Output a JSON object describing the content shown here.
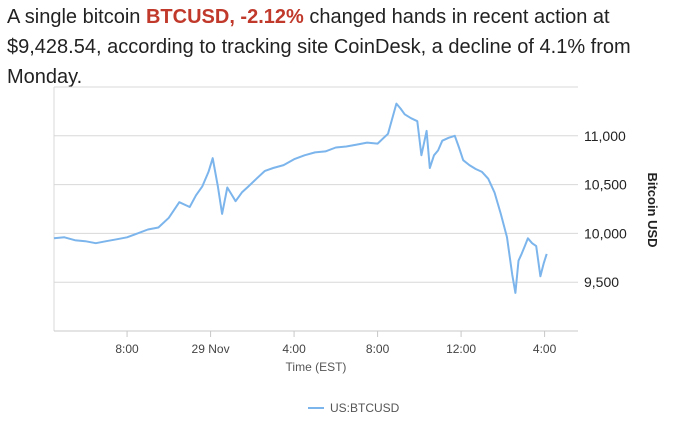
{
  "article": {
    "lead": "A single bitcoin ",
    "ticker": "BTCUSD, -2.12%",
    "tail": " changed hands in recent action at $9,428.54, according to tracking site CoinDesk, a decline of 4.1% from Monday."
  },
  "colors": {
    "series": "#7cb5ec",
    "ticker": "#c0392b",
    "grid": "#d8d8d8"
  },
  "chart_data": {
    "type": "line",
    "title": "",
    "xlabel": "Time (EST)",
    "ylabel": "Bitcoin USD",
    "x_unit": "hours since midnight Nov 28 (EST)",
    "xlim": [
      4.5,
      29.6
    ],
    "ylim": [
      9000,
      11500
    ],
    "xticks": [
      {
        "value": 8,
        "label": "8:00"
      },
      {
        "value": 12,
        "label": "29 Nov"
      },
      {
        "value": 16,
        "label": "4:00"
      },
      {
        "value": 20,
        "label": "8:00"
      },
      {
        "value": 24,
        "label": "12:00"
      },
      {
        "value": 28,
        "label": "4:00"
      }
    ],
    "yticks": [
      {
        "value": 9500,
        "label": "9,500"
      },
      {
        "value": 10000,
        "label": "10,000"
      },
      {
        "value": 10500,
        "label": "10,500"
      },
      {
        "value": 11000,
        "label": "11,000"
      }
    ],
    "grid": "horizontal",
    "legend_position": "bottom-center",
    "series": [
      {
        "name": "US:BTCUSD",
        "x": [
          4.5,
          5.0,
          5.5,
          6.0,
          6.5,
          7.0,
          7.5,
          8.0,
          8.5,
          9.0,
          9.5,
          10.0,
          10.5,
          11.0,
          11.3,
          11.6,
          11.9,
          12.1,
          12.35,
          12.55,
          12.8,
          13.0,
          13.2,
          13.5,
          13.8,
          14.2,
          14.6,
          15.0,
          15.5,
          16.0,
          16.5,
          17.0,
          17.5,
          18.0,
          18.5,
          19.0,
          19.5,
          20.0,
          20.5,
          20.9,
          21.1,
          21.3,
          21.6,
          21.9,
          22.1,
          22.35,
          22.5,
          22.7,
          22.9,
          23.1,
          23.4,
          23.7,
          23.9,
          24.1,
          24.4,
          24.7,
          25.0,
          25.3,
          25.6,
          25.9,
          26.2,
          26.45,
          26.6,
          26.75,
          26.9,
          27.05,
          27.2,
          27.4,
          27.6,
          27.8,
          27.95,
          28.1
        ],
        "y": [
          9950,
          9960,
          9930,
          9920,
          9900,
          9920,
          9940,
          9960,
          10000,
          10040,
          10060,
          10160,
          10320,
          10270,
          10390,
          10480,
          10630,
          10770,
          10480,
          10200,
          10470,
          10400,
          10330,
          10420,
          10480,
          10560,
          10640,
          10670,
          10700,
          10760,
          10800,
          10830,
          10840,
          10880,
          10890,
          10910,
          10930,
          10920,
          11020,
          11330,
          11280,
          11220,
          11180,
          11150,
          10800,
          11050,
          10670,
          10800,
          10850,
          10950,
          10980,
          11000,
          10880,
          10750,
          10700,
          10660,
          10630,
          10560,
          10420,
          10200,
          9960,
          9580,
          9390,
          9720,
          9790,
          9870,
          9950,
          9900,
          9870,
          9560,
          9690,
          9790
        ]
      }
    ]
  }
}
